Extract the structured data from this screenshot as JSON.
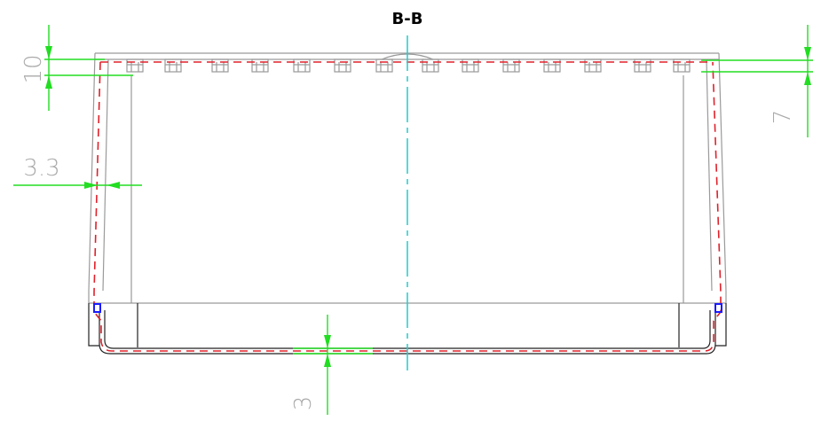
{
  "title": "B-B",
  "dimensions": [
    "10",
    "3.3",
    "7",
    "3"
  ]
}
